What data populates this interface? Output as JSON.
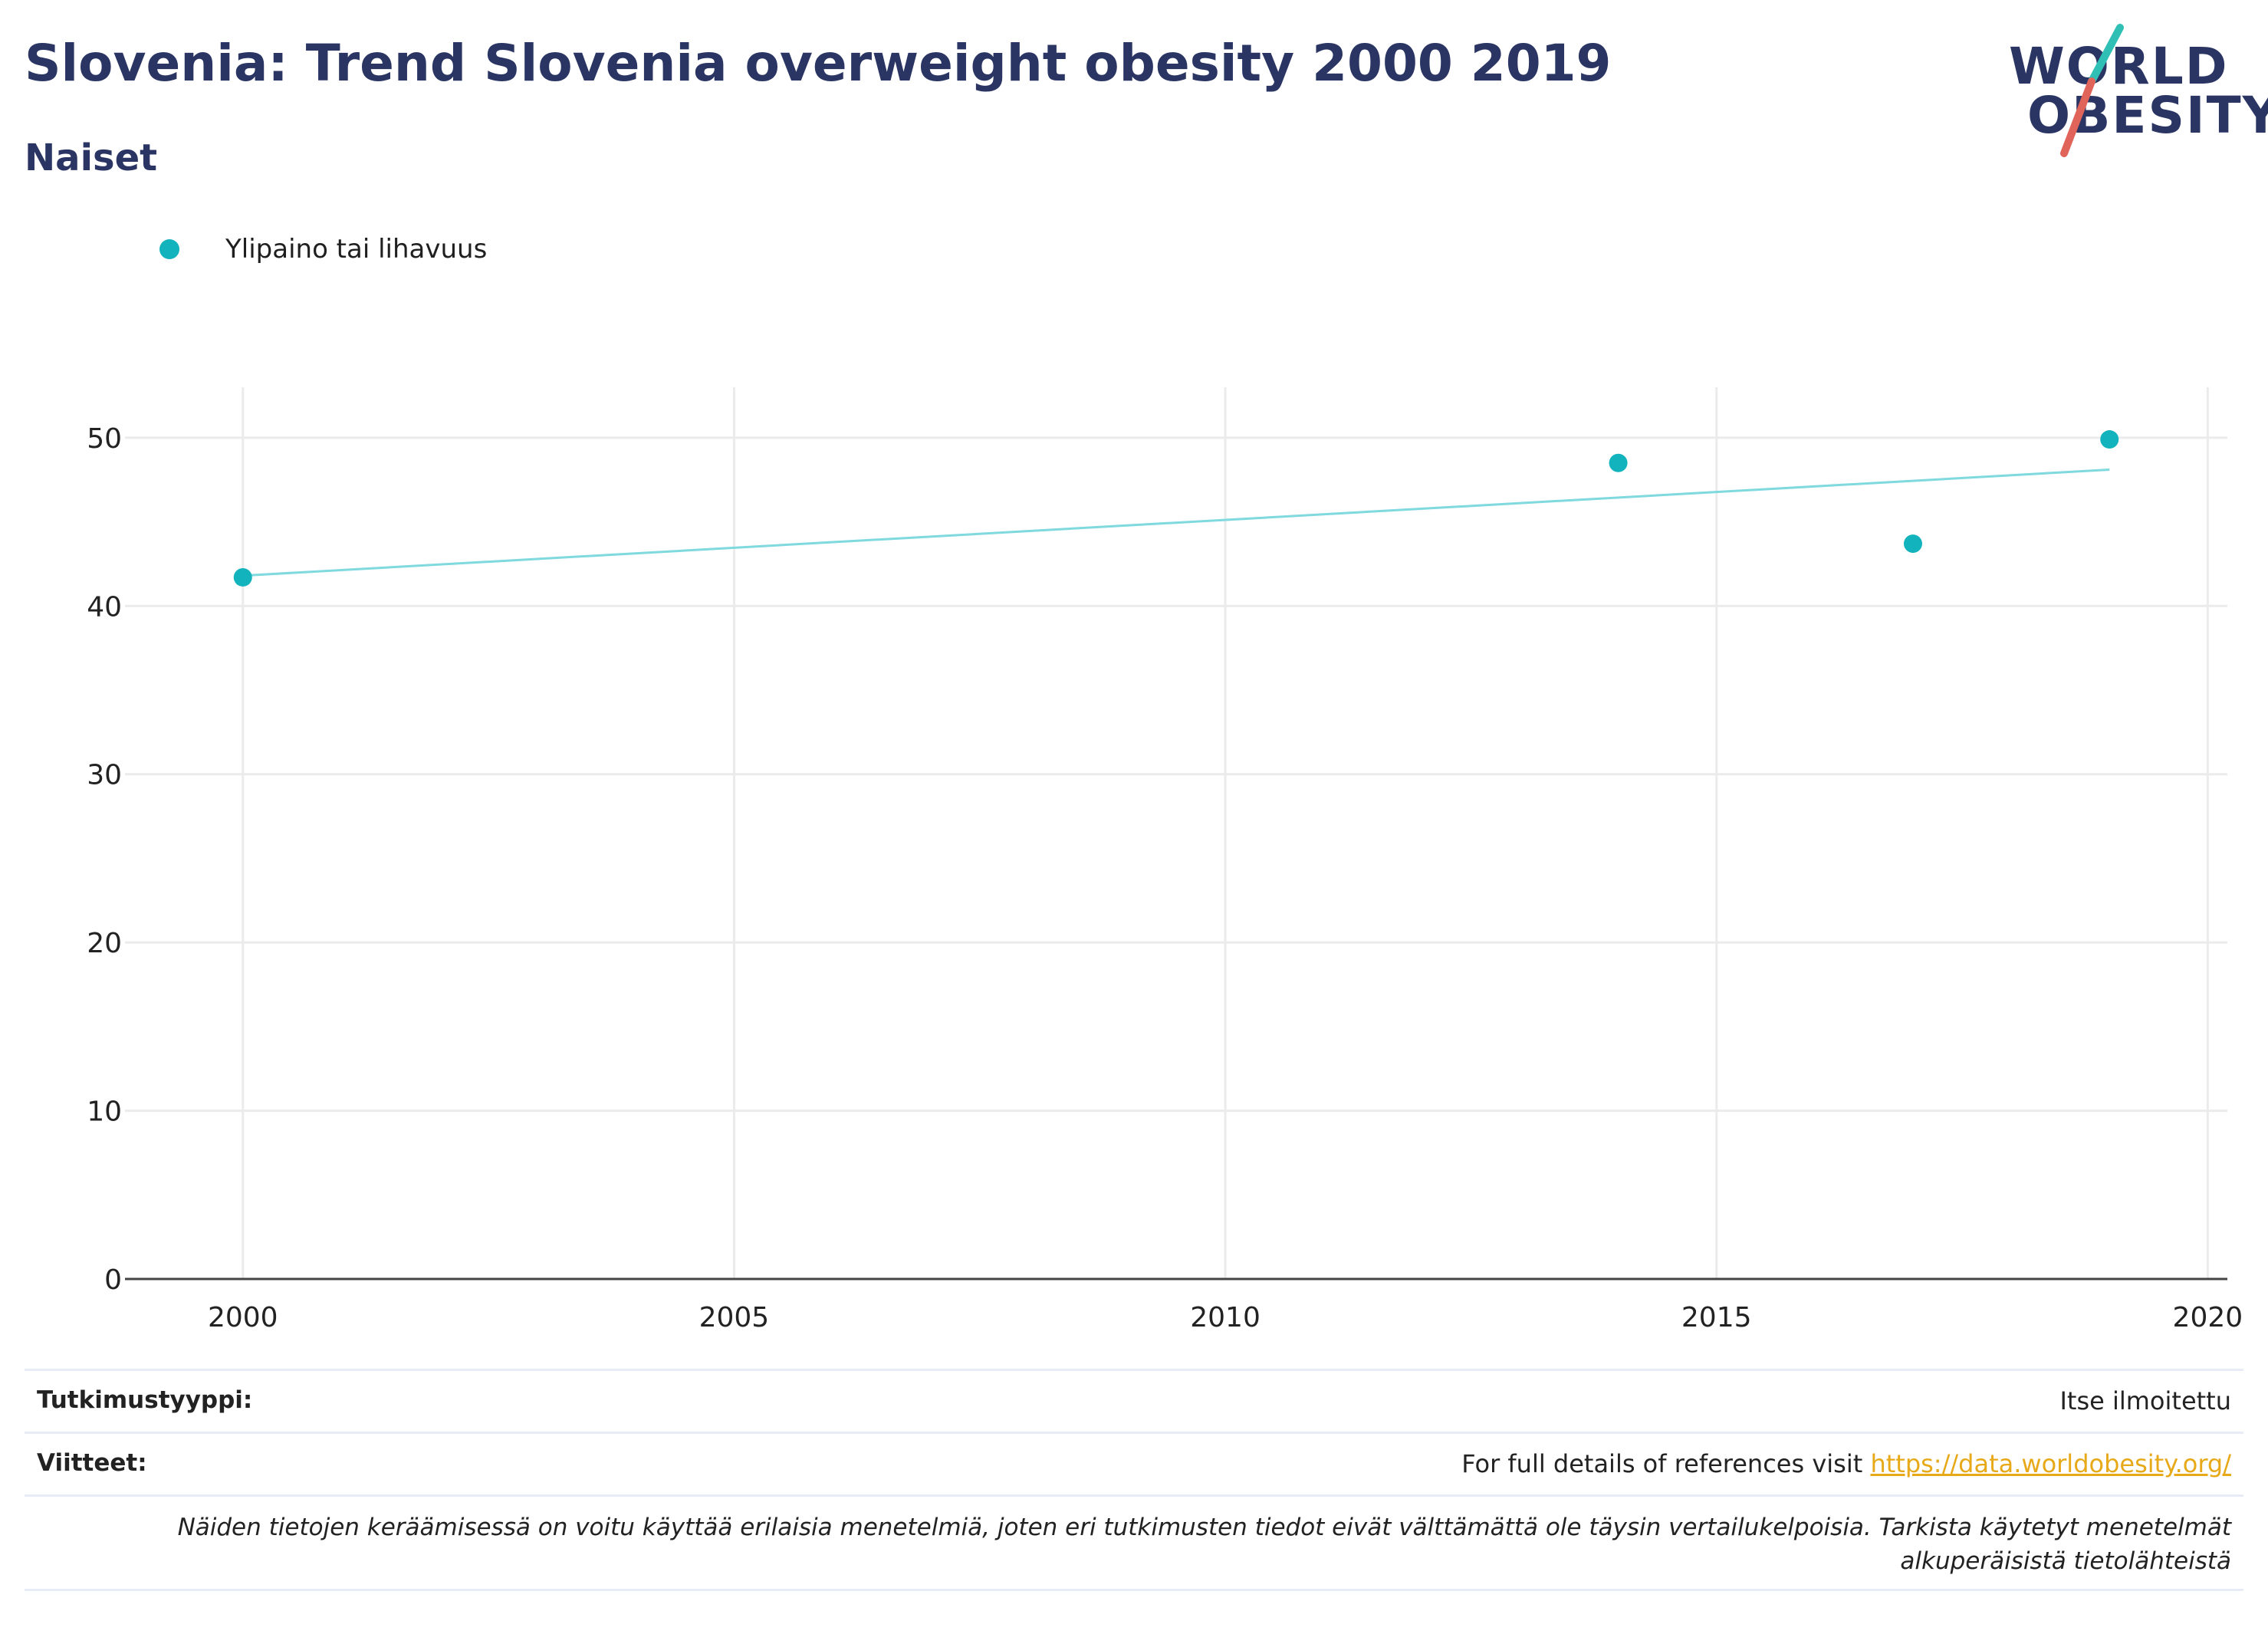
{
  "header": {
    "title": "Slovenia: Trend Slovenia overweight obesity 2000 2019",
    "subtitle": "Naiset"
  },
  "logo": {
    "line1": "WORLD",
    "line2": "OBESITY"
  },
  "colors": {
    "accent": "#12b3bd",
    "trend": "#7fd9de",
    "navy": "#2a3563",
    "link": "#e8a919",
    "logo_teal": "#2fbfb5",
    "logo_red": "#e0645a"
  },
  "chart_data": {
    "type": "scatter",
    "series": [
      {
        "name": "Ylipaino tai lihavuus",
        "x": [
          2000,
          2014,
          2017,
          2019
        ],
        "y": [
          41.7,
          48.5,
          43.7,
          49.9
        ]
      }
    ],
    "trendline": {
      "x": [
        2000,
        2019
      ],
      "y": [
        41.8,
        48.1
      ]
    },
    "xlim": [
      1998.8,
      2020.2
    ],
    "ylim": [
      0,
      53
    ],
    "x_ticks": [
      2000,
      2005,
      2010,
      2015,
      2020
    ],
    "y_ticks": [
      0,
      10,
      20,
      30,
      40,
      50
    ],
    "grid": true,
    "legend_position": "top-left"
  },
  "footer": {
    "study_type_label": "Tutkimustyyppi:",
    "study_type_value": "Itse ilmoitettu",
    "references_label": "Viitteet:",
    "references_text": "For full details of references visit ",
    "references_link": "https://data.worldobesity.org/",
    "note": "Näiden tietojen keräämisessä on voitu käyttää erilaisia menetelmiä, joten eri tutkimusten tiedot eivät välttämättä ole täysin vertailukelpoisia. Tarkista käytetyt menetelmät alkuperäisistä tietolähteistä"
  }
}
